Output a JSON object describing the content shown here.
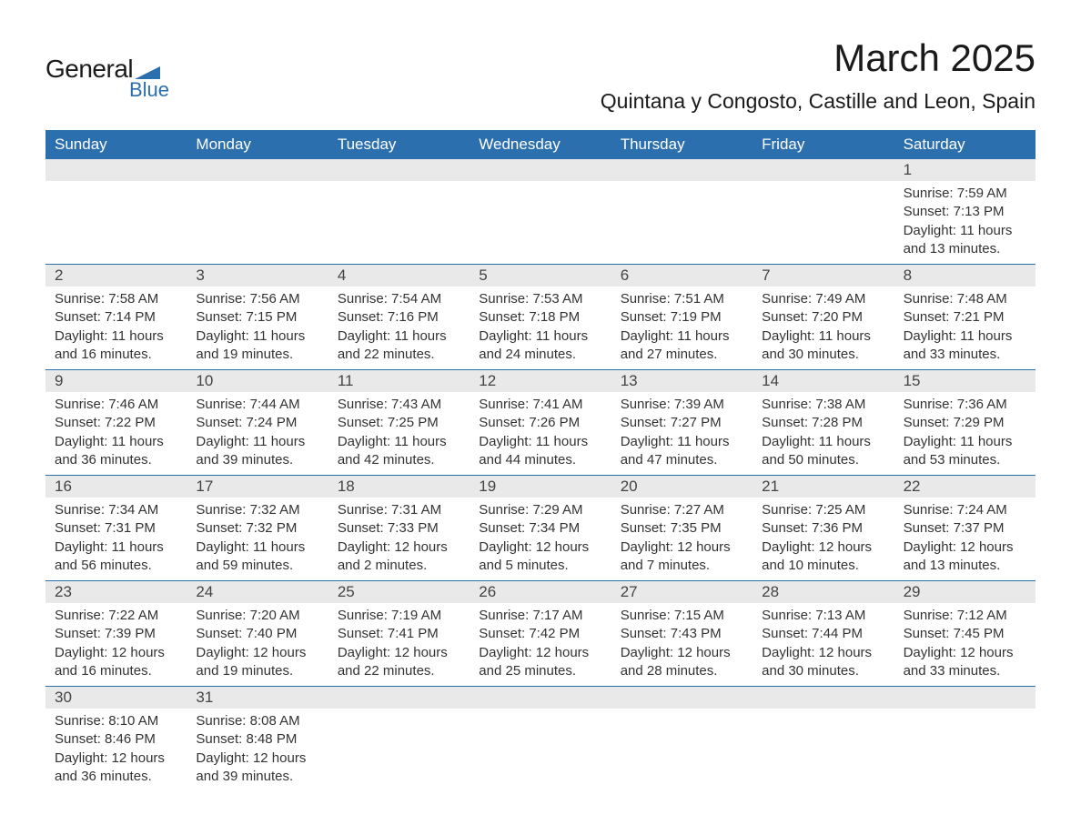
{
  "logo": {
    "general": "General",
    "blue": "Blue",
    "triangle_color": "#2c6fae"
  },
  "title": "March 2025",
  "location": "Quintana y Congosto, Castille and Leon, Spain",
  "colors": {
    "header_bg": "#2c6fae",
    "header_text": "#ffffff",
    "daynum_bg": "#e9e9e9",
    "row_border": "#2c6fae",
    "body_text": "#333333"
  },
  "weekdays": [
    "Sunday",
    "Monday",
    "Tuesday",
    "Wednesday",
    "Thursday",
    "Friday",
    "Saturday"
  ],
  "labels": {
    "sunrise": "Sunrise: ",
    "sunset": "Sunset: ",
    "daylight": "Daylight: "
  },
  "weeks": [
    [
      null,
      null,
      null,
      null,
      null,
      null,
      {
        "n": "1",
        "sunrise": "7:59 AM",
        "sunset": "7:13 PM",
        "daylight": "11 hours and 13 minutes."
      }
    ],
    [
      {
        "n": "2",
        "sunrise": "7:58 AM",
        "sunset": "7:14 PM",
        "daylight": "11 hours and 16 minutes."
      },
      {
        "n": "3",
        "sunrise": "7:56 AM",
        "sunset": "7:15 PM",
        "daylight": "11 hours and 19 minutes."
      },
      {
        "n": "4",
        "sunrise": "7:54 AM",
        "sunset": "7:16 PM",
        "daylight": "11 hours and 22 minutes."
      },
      {
        "n": "5",
        "sunrise": "7:53 AM",
        "sunset": "7:18 PM",
        "daylight": "11 hours and 24 minutes."
      },
      {
        "n": "6",
        "sunrise": "7:51 AM",
        "sunset": "7:19 PM",
        "daylight": "11 hours and 27 minutes."
      },
      {
        "n": "7",
        "sunrise": "7:49 AM",
        "sunset": "7:20 PM",
        "daylight": "11 hours and 30 minutes."
      },
      {
        "n": "8",
        "sunrise": "7:48 AM",
        "sunset": "7:21 PM",
        "daylight": "11 hours and 33 minutes."
      }
    ],
    [
      {
        "n": "9",
        "sunrise": "7:46 AM",
        "sunset": "7:22 PM",
        "daylight": "11 hours and 36 minutes."
      },
      {
        "n": "10",
        "sunrise": "7:44 AM",
        "sunset": "7:24 PM",
        "daylight": "11 hours and 39 minutes."
      },
      {
        "n": "11",
        "sunrise": "7:43 AM",
        "sunset": "7:25 PM",
        "daylight": "11 hours and 42 minutes."
      },
      {
        "n": "12",
        "sunrise": "7:41 AM",
        "sunset": "7:26 PM",
        "daylight": "11 hours and 44 minutes."
      },
      {
        "n": "13",
        "sunrise": "7:39 AM",
        "sunset": "7:27 PM",
        "daylight": "11 hours and 47 minutes."
      },
      {
        "n": "14",
        "sunrise": "7:38 AM",
        "sunset": "7:28 PM",
        "daylight": "11 hours and 50 minutes."
      },
      {
        "n": "15",
        "sunrise": "7:36 AM",
        "sunset": "7:29 PM",
        "daylight": "11 hours and 53 minutes."
      }
    ],
    [
      {
        "n": "16",
        "sunrise": "7:34 AM",
        "sunset": "7:31 PM",
        "daylight": "11 hours and 56 minutes."
      },
      {
        "n": "17",
        "sunrise": "7:32 AM",
        "sunset": "7:32 PM",
        "daylight": "11 hours and 59 minutes."
      },
      {
        "n": "18",
        "sunrise": "7:31 AM",
        "sunset": "7:33 PM",
        "daylight": "12 hours and 2 minutes."
      },
      {
        "n": "19",
        "sunrise": "7:29 AM",
        "sunset": "7:34 PM",
        "daylight": "12 hours and 5 minutes."
      },
      {
        "n": "20",
        "sunrise": "7:27 AM",
        "sunset": "7:35 PM",
        "daylight": "12 hours and 7 minutes."
      },
      {
        "n": "21",
        "sunrise": "7:25 AM",
        "sunset": "7:36 PM",
        "daylight": "12 hours and 10 minutes."
      },
      {
        "n": "22",
        "sunrise": "7:24 AM",
        "sunset": "7:37 PM",
        "daylight": "12 hours and 13 minutes."
      }
    ],
    [
      {
        "n": "23",
        "sunrise": "7:22 AM",
        "sunset": "7:39 PM",
        "daylight": "12 hours and 16 minutes."
      },
      {
        "n": "24",
        "sunrise": "7:20 AM",
        "sunset": "7:40 PM",
        "daylight": "12 hours and 19 minutes."
      },
      {
        "n": "25",
        "sunrise": "7:19 AM",
        "sunset": "7:41 PM",
        "daylight": "12 hours and 22 minutes."
      },
      {
        "n": "26",
        "sunrise": "7:17 AM",
        "sunset": "7:42 PM",
        "daylight": "12 hours and 25 minutes."
      },
      {
        "n": "27",
        "sunrise": "7:15 AM",
        "sunset": "7:43 PM",
        "daylight": "12 hours and 28 minutes."
      },
      {
        "n": "28",
        "sunrise": "7:13 AM",
        "sunset": "7:44 PM",
        "daylight": "12 hours and 30 minutes."
      },
      {
        "n": "29",
        "sunrise": "7:12 AM",
        "sunset": "7:45 PM",
        "daylight": "12 hours and 33 minutes."
      }
    ],
    [
      {
        "n": "30",
        "sunrise": "8:10 AM",
        "sunset": "8:46 PM",
        "daylight": "12 hours and 36 minutes."
      },
      {
        "n": "31",
        "sunrise": "8:08 AM",
        "sunset": "8:48 PM",
        "daylight": "12 hours and 39 minutes."
      },
      null,
      null,
      null,
      null,
      null
    ]
  ]
}
